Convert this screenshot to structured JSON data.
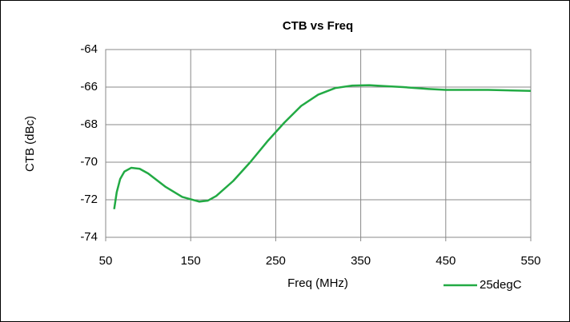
{
  "chart_data": {
    "type": "line",
    "title": "CTB vs Freq",
    "x_label": "Freq (MHz)",
    "y_label": "CTB (dBc)",
    "x": [
      60,
      63,
      67,
      72,
      80,
      90,
      100,
      120,
      140,
      160,
      170,
      180,
      200,
      220,
      240,
      260,
      280,
      300,
      320,
      340,
      360,
      380,
      400,
      430,
      450,
      500,
      550
    ],
    "series": [
      {
        "name": "25degC",
        "color": "#22aa44",
        "values": [
          -72.5,
          -71.6,
          -70.9,
          -70.5,
          -70.3,
          -70.35,
          -70.6,
          -71.3,
          -71.85,
          -72.1,
          -72.05,
          -71.8,
          -71.0,
          -70.0,
          -68.9,
          -67.9,
          -67.0,
          -66.4,
          -66.05,
          -65.92,
          -65.9,
          -65.95,
          -66.0,
          -66.1,
          -66.15,
          -66.15,
          -66.2
        ]
      }
    ],
    "xlim": [
      50,
      550
    ],
    "xticks": [
      50,
      150,
      250,
      350,
      450,
      550
    ],
    "ylim": [
      -74,
      -64
    ],
    "yticks": [
      -74,
      -72,
      -70,
      -68,
      -66,
      -64
    ],
    "grid": true,
    "legend": "bottom-right"
  }
}
